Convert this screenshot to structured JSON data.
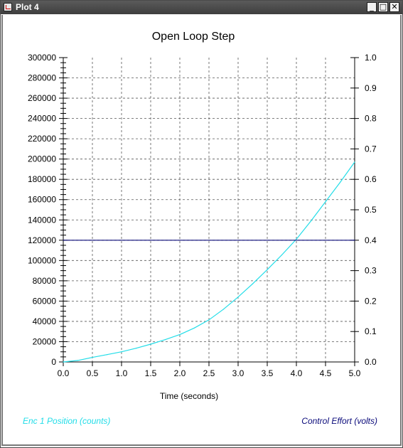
{
  "window": {
    "title": "Plot 4",
    "minimize_label": "_",
    "maximize_label": "□",
    "close_label": "✕",
    "icon": "chart-icon"
  },
  "chart_data": {
    "type": "line",
    "title": "Open Loop Step",
    "xlabel": "Time (seconds)",
    "xlim": [
      0,
      5
    ],
    "x_ticks": [
      "0.0",
      "0.5",
      "1.0",
      "1.5",
      "2.0",
      "2.5",
      "3.0",
      "3.5",
      "4.0",
      "4.5",
      "5.0"
    ],
    "y_left_lim": [
      0,
      300000
    ],
    "y_left_ticks": [
      "0",
      "20000",
      "40000",
      "60000",
      "80000",
      "100000",
      "120000",
      "140000",
      "160000",
      "180000",
      "200000",
      "220000",
      "240000",
      "260000",
      "280000",
      "300000"
    ],
    "y_right_lim": [
      0,
      1
    ],
    "y_right_ticks": [
      "0.0",
      "0.1",
      "0.2",
      "0.3",
      "0.4",
      "0.5",
      "0.6",
      "0.7",
      "0.8",
      "0.9",
      "1.0"
    ],
    "grid": true,
    "legend_placement": "bottom",
    "series": [
      {
        "name": "Enc 1 Position (counts)",
        "axis": "left",
        "color": "#22dde8",
        "x": [
          0,
          0.25,
          0.5,
          0.75,
          1.0,
          1.25,
          1.5,
          1.75,
          2.0,
          2.25,
          2.5,
          2.75,
          3.0,
          3.25,
          3.5,
          3.75,
          4.0,
          4.25,
          4.5,
          4.75,
          5.0
        ],
        "y": [
          0,
          1500,
          4500,
          7200,
          10000,
          13500,
          17500,
          22000,
          27000,
          33500,
          41500,
          52000,
          64000,
          77000,
          91000,
          105500,
          121000,
          139000,
          158000,
          177000,
          197000
        ]
      },
      {
        "name": "Control Effort (volts)",
        "axis": "right",
        "color": "#0a0a7a",
        "x": [
          0,
          5.0
        ],
        "y": [
          0.4,
          0.4
        ]
      }
    ]
  }
}
